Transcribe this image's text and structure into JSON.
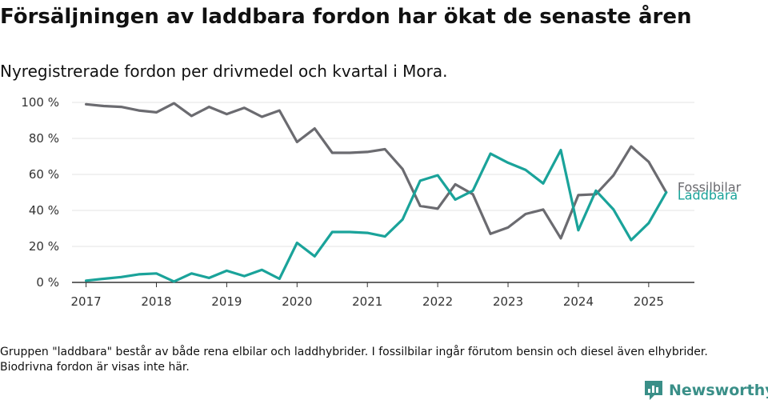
{
  "title": "Försäljningen av laddbara fordon har ökat de senaste åren",
  "subtitle": "Nyregistrerade fordon per drivmedel och kvartal i Mora.",
  "note": "Gruppen \"laddbara\" består av både rena elbilar och laddhybrider. I fossilbilar ingår förutom bensin och diesel även elhybrider. Biodrivna fordon är visas inte här.",
  "brand": {
    "name": "Newsworthy",
    "icon": "newsworthy-logo-icon",
    "color": "#3a8f88"
  },
  "chart_data": {
    "type": "line",
    "x_unit": "quarter",
    "x": [
      2017.0,
      2017.25,
      2017.5,
      2017.75,
      2018.0,
      2018.25,
      2018.5,
      2018.75,
      2019.0,
      2019.25,
      2019.5,
      2019.75,
      2020.0,
      2020.25,
      2020.5,
      2020.75,
      2021.0,
      2021.25,
      2021.5,
      2021.75,
      2022.0,
      2022.25,
      2022.5,
      2022.75,
      2023.0,
      2023.25,
      2023.5,
      2023.75,
      2024.0,
      2024.25,
      2024.5,
      2024.75,
      2025.0,
      2025.25
    ],
    "x_ticks": [
      2017,
      2018,
      2019,
      2020,
      2021,
      2022,
      2023,
      2024,
      2025
    ],
    "x_tick_labels": [
      "2017",
      "2018",
      "2019",
      "2020",
      "2021",
      "2022",
      "2023",
      "2024",
      "2025"
    ],
    "y_ticks": [
      0,
      20,
      40,
      60,
      80,
      100
    ],
    "y_tick_labels": [
      "0 %",
      "20 %",
      "40 %",
      "60 %",
      "80 %",
      "100 %"
    ],
    "ylim": [
      0,
      100
    ],
    "grid": true,
    "series": [
      {
        "name": "Fossilbilar",
        "color": "#6b6b70",
        "values": [
          99,
          98,
          97.5,
          95.5,
          94.5,
          99.5,
          92.5,
          97.5,
          93.5,
          97,
          92,
          95.5,
          78,
          85.5,
          72,
          72,
          72.5,
          74,
          63,
          42.5,
          41,
          54.5,
          49,
          27,
          30.5,
          38,
          40.5,
          24.5,
          48.5,
          49,
          59.5,
          75.5,
          67,
          50
        ]
      },
      {
        "name": "Laddbara",
        "color": "#1aa39a",
        "values": [
          1,
          2,
          3,
          4.5,
          5,
          0.5,
          5,
          2.5,
          6.5,
          3.5,
          7,
          2,
          22,
          14.5,
          28,
          28,
          27.5,
          25.5,
          35,
          56.5,
          59.5,
          46,
          51,
          71.5,
          66.5,
          62.5,
          55,
          73.5,
          29,
          51,
          40.5,
          23.5,
          33,
          50
        ]
      }
    ]
  }
}
